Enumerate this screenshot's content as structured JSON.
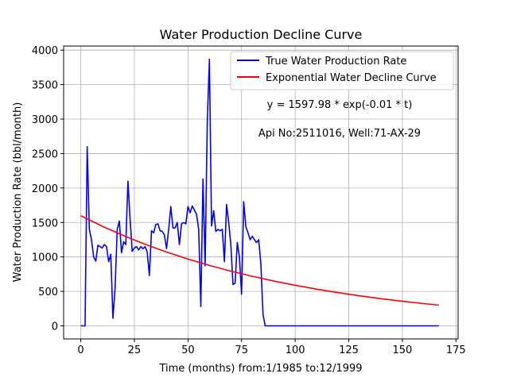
{
  "chart_data": {
    "type": "line",
    "title": "Water Production Decline Curve",
    "xlabel": "Time (months) from:1/1985 to:12/1999",
    "ylabel": "Water Production Rate (bbl/month)",
    "xlim": [
      -8,
      176
    ],
    "ylim": [
      -190,
      4060
    ],
    "x_ticks": [
      0,
      25,
      50,
      75,
      100,
      125,
      150,
      175
    ],
    "y_ticks": [
      0,
      500,
      1000,
      1500,
      2000,
      2500,
      3000,
      3500,
      4000
    ],
    "grid": true,
    "legend_position": "top-right",
    "annotations": [
      "y = 1597.98 * exp(-0.01 * t)",
      "Api No:2511016, Well:71-AX-29"
    ],
    "series": [
      {
        "name": "True Water Production Rate",
        "color": "#0000ff",
        "x": [
          0,
          1,
          2,
          3,
          4,
          5,
          6,
          7,
          8,
          9,
          10,
          11,
          12,
          13,
          14,
          15,
          16,
          17,
          18,
          19,
          20,
          21,
          22,
          23,
          24,
          25,
          26,
          27,
          28,
          29,
          30,
          31,
          32,
          33,
          34,
          35,
          36,
          37,
          38,
          39,
          40,
          41,
          42,
          43,
          44,
          45,
          46,
          47,
          48,
          49,
          50,
          51,
          52,
          53,
          54,
          55,
          56,
          57,
          58,
          59,
          60,
          61,
          62,
          63,
          64,
          65,
          66,
          67,
          68,
          69,
          70,
          71,
          72,
          73,
          74,
          75,
          76,
          77,
          78,
          79,
          80,
          81,
          82,
          83,
          84,
          85,
          86,
          90,
          100,
          110,
          120,
          130,
          140,
          150,
          160,
          167
        ],
        "y": [
          0,
          0,
          0,
          2600,
          1400,
          1250,
          1000,
          940,
          1170,
          1150,
          1130,
          1180,
          1150,
          930,
          1040,
          110,
          540,
          1400,
          1520,
          1060,
          1220,
          1180,
          2100,
          1550,
          1080,
          1130,
          1150,
          1100,
          1150,
          1120,
          1150,
          1070,
          730,
          1380,
          1350,
          1470,
          1480,
          1380,
          1370,
          1320,
          1120,
          1400,
          1730,
          1420,
          1420,
          1500,
          1180,
          1480,
          1500,
          1480,
          1730,
          1640,
          1740,
          1680,
          1620,
          1400,
          280,
          2130,
          870,
          2950,
          3870,
          1450,
          1670,
          1370,
          1400,
          1380,
          1400,
          930,
          1760,
          1500,
          1180,
          600,
          620,
          1210,
          1000,
          460,
          1800,
          1440,
          1350,
          1250,
          1300,
          1250,
          1210,
          1250,
          900,
          170,
          0,
          0,
          0,
          0,
          0,
          0,
          0,
          0,
          0,
          0
        ]
      },
      {
        "name": "Exponential Water Decline Curve",
        "color": "#ff0000",
        "equation": "y = 1597.98 * exp(-0.01 * t)",
        "x": [
          0,
          10,
          20,
          30,
          40,
          50,
          60,
          70,
          80,
          90,
          100,
          110,
          120,
          130,
          140,
          150,
          160,
          167
        ],
        "y": [
          1597.98,
          1445.9,
          1308.3,
          1183.8,
          1071.1,
          969.2,
          877.0,
          793.5,
          718.0,
          649.7,
          587.9,
          531.9,
          481.3,
          435.5,
          394.1,
          356.5,
          322.6,
          300.8
        ]
      }
    ]
  }
}
